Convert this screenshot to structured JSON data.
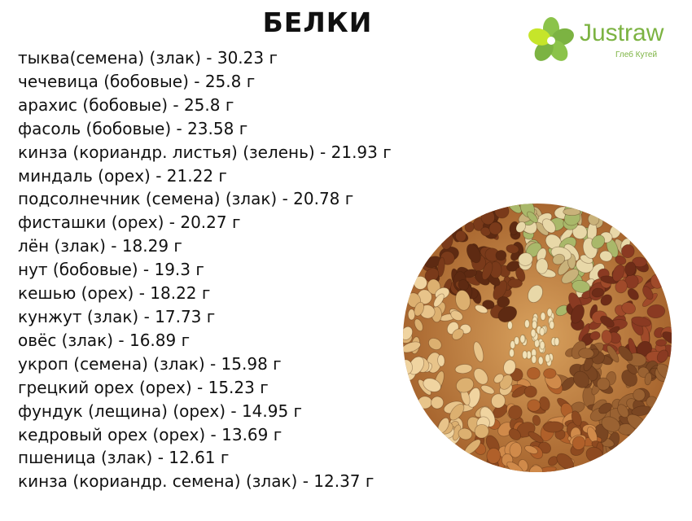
{
  "title": "БЕЛКИ",
  "logo": {
    "brand": "Justraw",
    "author": "Глеб Кутей",
    "color": "#7cb342"
  },
  "items": [
    "тыква(семена) (злак) - 30.23 г",
    "чечевица (бобовые) - 25.8 г",
    "арахис (бобовые) - 25.8 г",
    "фасоль (бобовые) - 23.58 г",
    "кинза (кориандр. листья) (зелень) - 21.93 г",
    "миндаль (орех) - 21.22 г",
    "подсолнечник (семена) (злак) - 20.78 г",
    "фисташки (орех) - 20.27 г",
    "лён (злак) - 18.29 г",
    "нут (бобовые) - 19.3 г",
    "кешью (орех) - 18.22 г",
    "кунжут (злак) - 17.73 г",
    "овёс (злак) - 16.89 г",
    "укроп (семена) (злак) - 15.98 г",
    "грецкий орех (орех) - 15.23 г",
    "фундук (лещина) (орех) - 14.95 г",
    "кедровый орех (орех) - 13.69 г",
    "пшеница (злак) - 12.61 г",
    "кинза (кориандр. семена) (злак) - 12.37 г"
  ]
}
